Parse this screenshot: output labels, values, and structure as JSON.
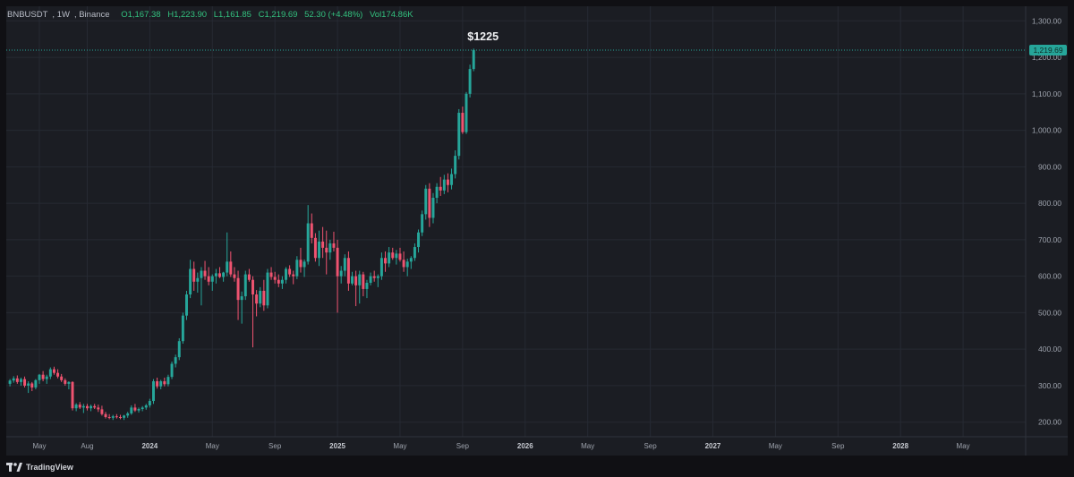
{
  "header": {
    "symbol": "BNBUSDT",
    "interval": "1W",
    "exchange": "Binance",
    "open": "O1,167.38",
    "high": "H1,223.90",
    "low": "L1,161.85",
    "close": "C1,219.69",
    "change": "52.30 (+4.48%)",
    "volume": "Vol174.86K"
  },
  "footer": {
    "brand": "TradingView"
  },
  "colors": {
    "up": "#26a69a",
    "down": "#ef5370",
    "grid": "#262a33",
    "background": "#101014",
    "price_tag": "#26a69a"
  },
  "chart_data": {
    "type": "candlestick",
    "symbol": "BNBUSDT",
    "interval": "1W",
    "ylim": [
      160,
      1340
    ],
    "y_ticks": [
      "200.00",
      "300.00",
      "400.00",
      "500.00",
      "600.00",
      "700.00",
      "800.00",
      "900.00",
      "1,000.00",
      "1,100.00",
      "1,200.00",
      "1,300.00"
    ],
    "y_tick_values": [
      200,
      300,
      400,
      500,
      600,
      700,
      800,
      900,
      1000,
      1100,
      1200,
      1300
    ],
    "x_ticks": [
      {
        "label": "May",
        "index": 8,
        "year": false
      },
      {
        "label": "Aug",
        "index": 21,
        "year": false
      },
      {
        "label": "2024",
        "index": 38,
        "year": true
      },
      {
        "label": "May",
        "index": 55,
        "year": false
      },
      {
        "label": "Sep",
        "index": 72,
        "year": false
      },
      {
        "label": "2025",
        "index": 89,
        "year": true
      },
      {
        "label": "May",
        "index": 106,
        "year": false
      },
      {
        "label": "Sep",
        "index": 123,
        "year": false
      },
      {
        "label": "2026",
        "index": 140,
        "year": true
      },
      {
        "label": "May",
        "index": 157,
        "year": false
      },
      {
        "label": "Sep",
        "index": 174,
        "year": false
      },
      {
        "label": "2027",
        "index": 191,
        "year": true
      },
      {
        "label": "May",
        "index": 208,
        "year": false
      },
      {
        "label": "Sep",
        "index": 225,
        "year": false
      },
      {
        "label": "2028",
        "index": 242,
        "year": true
      },
      {
        "label": "May",
        "index": 259,
        "year": false
      }
    ],
    "index_range": [
      -1,
      276
    ],
    "last_price": 1219.69,
    "last_price_label": "1,219.69",
    "annotation": {
      "text": "$1225",
      "index": 130,
      "value": 1225
    },
    "candles": [
      [
        305,
        318,
        298,
        314
      ],
      [
        314,
        326,
        308,
        320
      ],
      [
        320,
        328,
        305,
        310
      ],
      [
        310,
        322,
        300,
        318
      ],
      [
        318,
        325,
        295,
        300
      ],
      [
        300,
        312,
        280,
        306
      ],
      [
        306,
        310,
        285,
        295
      ],
      [
        295,
        318,
        290,
        315
      ],
      [
        315,
        332,
        305,
        330
      ],
      [
        330,
        340,
        312,
        318
      ],
      [
        318,
        330,
        305,
        325
      ],
      [
        325,
        350,
        318,
        345
      ],
      [
        345,
        352,
        330,
        335
      ],
      [
        335,
        345,
        320,
        325
      ],
      [
        325,
        332,
        310,
        315
      ],
      [
        315,
        320,
        300,
        305
      ],
      [
        305,
        312,
        290,
        310
      ],
      [
        310,
        312,
        232,
        238
      ],
      [
        238,
        252,
        230,
        248
      ],
      [
        248,
        255,
        236,
        240
      ],
      [
        240,
        250,
        225,
        244
      ],
      [
        244,
        250,
        232,
        238
      ],
      [
        238,
        248,
        230,
        244
      ],
      [
        244,
        250,
        236,
        240
      ],
      [
        240,
        248,
        228,
        235
      ],
      [
        235,
        245,
        218,
        222
      ],
      [
        222,
        228,
        210,
        214
      ],
      [
        214,
        222,
        208,
        212
      ],
      [
        212,
        220,
        206,
        216
      ],
      [
        216,
        222,
        210,
        214
      ],
      [
        214,
        220,
        208,
        212
      ],
      [
        212,
        220,
        206,
        218
      ],
      [
        218,
        228,
        212,
        224
      ],
      [
        224,
        246,
        220,
        240
      ],
      [
        240,
        250,
        228,
        232
      ],
      [
        232,
        240,
        226,
        236
      ],
      [
        236,
        244,
        230,
        240
      ],
      [
        240,
        250,
        234,
        246
      ],
      [
        246,
        264,
        240,
        258
      ],
      [
        258,
        318,
        250,
        312
      ],
      [
        312,
        322,
        292,
        298
      ],
      [
        298,
        316,
        290,
        312
      ],
      [
        312,
        322,
        298,
        304
      ],
      [
        304,
        330,
        298,
        324
      ],
      [
        324,
        366,
        318,
        360
      ],
      [
        360,
        385,
        350,
        378
      ],
      [
        378,
        430,
        370,
        422
      ],
      [
        422,
        500,
        415,
        492
      ],
      [
        492,
        560,
        480,
        550
      ],
      [
        550,
        645,
        540,
        620
      ],
      [
        620,
        640,
        560,
        585
      ],
      [
        585,
        610,
        555,
        595
      ],
      [
        595,
        625,
        520,
        615
      ],
      [
        615,
        642,
        590,
        600
      ],
      [
        600,
        625,
        575,
        585
      ],
      [
        585,
        605,
        560,
        600
      ],
      [
        600,
        620,
        580,
        608
      ],
      [
        608,
        625,
        595,
        598
      ],
      [
        598,
        612,
        585,
        610
      ],
      [
        610,
        720,
        600,
        640
      ],
      [
        640,
        668,
        598,
        605
      ],
      [
        605,
        625,
        585,
        595
      ],
      [
        595,
        615,
        480,
        535
      ],
      [
        535,
        558,
        470,
        545
      ],
      [
        545,
        615,
        535,
        605
      ],
      [
        605,
        620,
        585,
        590
      ],
      [
        590,
        600,
        405,
        550
      ],
      [
        550,
        562,
        490,
        525
      ],
      [
        525,
        570,
        515,
        560
      ],
      [
        560,
        590,
        505,
        520
      ],
      [
        520,
        620,
        512,
        610
      ],
      [
        610,
        625,
        590,
        598
      ],
      [
        598,
        612,
        580,
        590
      ],
      [
        590,
        605,
        570,
        580
      ],
      [
        580,
        600,
        565,
        590
      ],
      [
        590,
        625,
        580,
        620
      ],
      [
        620,
        630,
        598,
        605
      ],
      [
        605,
        615,
        578,
        600
      ],
      [
        600,
        655,
        592,
        645
      ],
      [
        645,
        678,
        610,
        625
      ],
      [
        625,
        646,
        598,
        640
      ],
      [
        640,
        795,
        632,
        745
      ],
      [
        745,
        772,
        690,
        705
      ],
      [
        705,
        718,
        640,
        650
      ],
      [
        650,
        725,
        628,
        695
      ],
      [
        695,
        735,
        650,
        678
      ],
      [
        678,
        725,
        605,
        665
      ],
      [
        665,
        700,
        645,
        690
      ],
      [
        690,
        722,
        668,
        678
      ],
      [
        678,
        700,
        500,
        600
      ],
      [
        600,
        628,
        580,
        615
      ],
      [
        615,
        660,
        600,
        650
      ],
      [
        650,
        668,
        560,
        580
      ],
      [
        580,
        612,
        575,
        600
      ],
      [
        600,
        615,
        518,
        575
      ],
      [
        575,
        615,
        525,
        605
      ],
      [
        605,
        612,
        545,
        565
      ],
      [
        565,
        590,
        540,
        582
      ],
      [
        582,
        610,
        575,
        600
      ],
      [
        600,
        615,
        585,
        595
      ],
      [
        595,
        605,
        570,
        600
      ],
      [
        600,
        665,
        590,
        650
      ],
      [
        650,
        668,
        612,
        635
      ],
      [
        635,
        680,
        625,
        665
      ],
      [
        665,
        678,
        645,
        650
      ],
      [
        650,
        672,
        632,
        662
      ],
      [
        662,
        678,
        640,
        645
      ],
      [
        645,
        668,
        612,
        625
      ],
      [
        625,
        648,
        600,
        640
      ],
      [
        640,
        655,
        620,
        650
      ],
      [
        650,
        690,
        642,
        680
      ],
      [
        680,
        728,
        665,
        720
      ],
      [
        720,
        780,
        710,
        770
      ],
      [
        770,
        850,
        755,
        840
      ],
      [
        840,
        855,
        735,
        760
      ],
      [
        760,
        828,
        745,
        815
      ],
      [
        815,
        855,
        800,
        845
      ],
      [
        845,
        872,
        820,
        835
      ],
      [
        835,
        878,
        825,
        865
      ],
      [
        865,
        882,
        830,
        850
      ],
      [
        850,
        895,
        838,
        880
      ],
      [
        880,
        945,
        868,
        930
      ],
      [
        930,
        1058,
        920,
        1048
      ],
      [
        1048,
        1065,
        990,
        995
      ],
      [
        995,
        1105,
        990,
        1100
      ],
      [
        1100,
        1180,
        1090,
        1168
      ],
      [
        1168,
        1224,
        1162,
        1220
      ]
    ]
  }
}
